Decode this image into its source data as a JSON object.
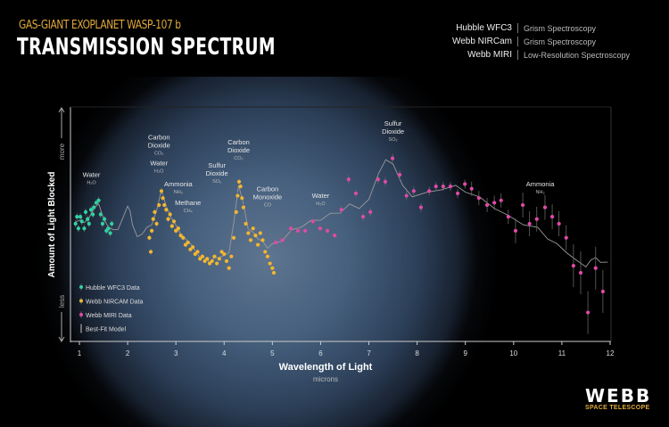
{
  "header": {
    "subtitle": "GAS-GIANT EXOPLANET WASP-107 b",
    "title": "TRANSMISSION SPECTRUM",
    "instruments": [
      {
        "name": "Hubble WFC3",
        "mode": "Grism Spectroscopy"
      },
      {
        "name": "Webb NIRCam",
        "mode": "Grism Spectroscopy"
      },
      {
        "name": "Webb MIRI",
        "mode": "Low-Resolution Spectroscopy"
      }
    ]
  },
  "logo": {
    "word": "WEBB",
    "sub": "SPACE TELESCOPE"
  },
  "chart_data": {
    "type": "scatter",
    "xlabel": "Wavelength of Light",
    "xunit": "microns",
    "ylabel": "Amount of Light Blocked",
    "y_more": "more",
    "y_less": "less",
    "xlim": [
      0.8,
      12
    ],
    "xticks": [
      1,
      2,
      3,
      4,
      5,
      6,
      7,
      8,
      9,
      10,
      11,
      12
    ],
    "ylim": [
      0,
      100
    ],
    "grid": false,
    "legend_position": "bottom-left",
    "colors": {
      "hubble": "#2ed3a0",
      "nircam": "#f2b630",
      "miri": "#e04aa8",
      "model": "#9a9a9a"
    },
    "legend": [
      "Hubble WFC3 Data",
      "Webb NIRCAM Data",
      "Webb MIRI Data",
      "Best-Fit Model"
    ],
    "series": [
      {
        "name": "Hubble WFC3 Data",
        "key": "hubble",
        "points": [
          [
            0.92,
            50
          ],
          [
            0.95,
            53
          ],
          [
            0.98,
            48
          ],
          [
            1.02,
            53
          ],
          [
            1.05,
            51
          ],
          [
            1.1,
            48
          ],
          [
            1.13,
            55
          ],
          [
            1.17,
            52
          ],
          [
            1.2,
            50
          ],
          [
            1.24,
            56
          ],
          [
            1.28,
            54
          ],
          [
            1.3,
            57
          ],
          [
            1.35,
            59
          ],
          [
            1.4,
            60
          ],
          [
            1.44,
            54
          ],
          [
            1.48,
            50
          ],
          [
            1.52,
            52
          ],
          [
            1.56,
            47
          ],
          [
            1.6,
            48
          ],
          [
            1.64,
            46
          ],
          [
            1.67,
            50
          ]
        ]
      },
      {
        "name": "Webb NIRCAM Data",
        "key": "nircam",
        "points": [
          [
            2.45,
            44
          ],
          [
            2.48,
            38
          ],
          [
            2.5,
            47
          ],
          [
            2.53,
            52
          ],
          [
            2.56,
            55
          ],
          [
            2.6,
            50
          ],
          [
            2.65,
            58
          ],
          [
            2.7,
            64
          ],
          [
            2.73,
            61
          ],
          [
            2.76,
            58
          ],
          [
            2.8,
            56
          ],
          [
            2.84,
            52
          ],
          [
            2.88,
            54
          ],
          [
            2.92,
            49
          ],
          [
            2.96,
            51
          ],
          [
            3.0,
            47
          ],
          [
            3.05,
            48
          ],
          [
            3.1,
            45
          ],
          [
            3.15,
            44
          ],
          [
            3.2,
            41
          ],
          [
            3.25,
            42
          ],
          [
            3.3,
            39
          ],
          [
            3.35,
            40
          ],
          [
            3.4,
            37
          ],
          [
            3.45,
            38
          ],
          [
            3.5,
            35
          ],
          [
            3.55,
            36
          ],
          [
            3.6,
            34
          ],
          [
            3.65,
            35
          ],
          [
            3.7,
            33
          ],
          [
            3.75,
            34
          ],
          [
            3.8,
            36
          ],
          [
            3.85,
            33
          ],
          [
            3.9,
            35
          ],
          [
            3.95,
            38
          ],
          [
            4.0,
            37
          ],
          [
            4.05,
            34
          ],
          [
            4.1,
            31
          ],
          [
            4.15,
            36
          ],
          [
            4.2,
            44
          ],
          [
            4.25,
            55
          ],
          [
            4.28,
            62
          ],
          [
            4.31,
            68
          ],
          [
            4.34,
            66
          ],
          [
            4.37,
            61
          ],
          [
            4.4,
            57
          ],
          [
            4.45,
            50
          ],
          [
            4.5,
            46
          ],
          [
            4.55,
            43
          ],
          [
            4.6,
            48
          ],
          [
            4.65,
            45
          ],
          [
            4.7,
            41
          ],
          [
            4.75,
            46
          ],
          [
            4.8,
            43
          ],
          [
            4.85,
            38
          ],
          [
            4.9,
            36
          ],
          [
            4.95,
            33
          ],
          [
            5.0,
            31
          ],
          [
            5.03,
            29
          ]
        ]
      },
      {
        "name": "Webb MIRI Data",
        "key": "miri",
        "points": [
          [
            5.07,
            42
          ],
          [
            5.21,
            43
          ],
          [
            5.38,
            48
          ],
          [
            5.53,
            47
          ],
          [
            5.68,
            47
          ],
          [
            5.84,
            51
          ],
          [
            5.99,
            48
          ],
          [
            6.14,
            47
          ],
          [
            6.29,
            45
          ],
          [
            6.43,
            56
          ],
          [
            6.58,
            69
          ],
          [
            6.73,
            63
          ],
          [
            6.88,
            53
          ],
          [
            7.03,
            55
          ],
          [
            7.19,
            69
          ],
          [
            7.34,
            68
          ],
          [
            7.49,
            78
          ],
          [
            7.64,
            71
          ],
          [
            7.78,
            62
          ],
          [
            7.93,
            64
          ],
          [
            8.08,
            57
          ],
          [
            8.25,
            64
          ],
          [
            8.39,
            66
          ],
          [
            8.54,
            66
          ],
          [
            8.69,
            66
          ],
          [
            8.84,
            63
          ],
          [
            8.99,
            67
          ],
          [
            9.13,
            65
          ],
          [
            9.28,
            61
          ],
          [
            9.45,
            58
          ],
          [
            9.6,
            59
          ],
          [
            9.74,
            60
          ],
          [
            9.89,
            53
          ],
          [
            10.04,
            47
          ],
          [
            10.19,
            58
          ],
          [
            10.33,
            50
          ],
          [
            10.48,
            52
          ],
          [
            10.65,
            57
          ],
          [
            10.8,
            53
          ],
          [
            10.94,
            50
          ],
          [
            11.09,
            44
          ],
          [
            11.24,
            32
          ],
          [
            11.39,
            29
          ],
          [
            11.54,
            12
          ],
          [
            11.7,
            31
          ],
          [
            11.85,
            21
          ]
        ]
      },
      {
        "name": "Best-Fit Model",
        "key": "model",
        "points": [
          [
            0.9,
            50
          ],
          [
            1.0,
            52
          ],
          [
            1.1,
            50
          ],
          [
            1.2,
            53
          ],
          [
            1.3,
            56
          ],
          [
            1.4,
            59
          ],
          [
            1.5,
            52
          ],
          [
            1.6,
            49
          ],
          [
            1.7,
            47
          ],
          [
            1.8,
            48
          ],
          [
            1.9,
            52
          ],
          [
            2.0,
            58
          ],
          [
            2.05,
            55
          ],
          [
            2.1,
            50
          ],
          [
            2.2,
            44
          ],
          [
            2.3,
            46
          ],
          [
            2.4,
            48
          ],
          [
            2.5,
            50
          ],
          [
            2.6,
            55
          ],
          [
            2.7,
            65
          ],
          [
            2.8,
            57
          ],
          [
            2.9,
            53
          ],
          [
            3.0,
            49
          ],
          [
            3.1,
            46
          ],
          [
            3.2,
            43
          ],
          [
            3.3,
            42
          ],
          [
            3.4,
            38
          ],
          [
            3.5,
            36
          ],
          [
            3.6,
            35
          ],
          [
            3.7,
            34
          ],
          [
            3.8,
            35
          ],
          [
            3.9,
            36
          ],
          [
            4.0,
            36
          ],
          [
            4.1,
            38
          ],
          [
            4.2,
            50
          ],
          [
            4.3,
            67
          ],
          [
            4.4,
            58
          ],
          [
            4.5,
            48
          ],
          [
            4.6,
            46
          ],
          [
            4.7,
            44
          ],
          [
            4.8,
            42
          ],
          [
            4.9,
            40
          ],
          [
            5.0,
            41
          ],
          [
            5.2,
            43
          ],
          [
            5.4,
            47
          ],
          [
            5.6,
            49
          ],
          [
            5.8,
            51
          ],
          [
            6.0,
            52
          ],
          [
            6.2,
            54
          ],
          [
            6.4,
            55
          ],
          [
            6.6,
            58
          ],
          [
            6.8,
            57
          ],
          [
            7.0,
            60
          ],
          [
            7.2,
            72
          ],
          [
            7.35,
            77
          ],
          [
            7.5,
            76
          ],
          [
            7.7,
            66
          ],
          [
            7.9,
            62
          ],
          [
            8.2,
            63
          ],
          [
            8.5,
            65
          ],
          [
            8.8,
            66
          ],
          [
            9.0,
            64
          ],
          [
            9.3,
            61
          ],
          [
            9.6,
            57
          ],
          [
            9.9,
            53
          ],
          [
            10.2,
            50
          ],
          [
            10.5,
            48
          ],
          [
            10.7,
            44
          ],
          [
            10.9,
            41
          ],
          [
            11.1,
            38
          ],
          [
            11.3,
            34
          ],
          [
            11.5,
            32
          ],
          [
            11.6,
            34
          ],
          [
            11.7,
            36
          ],
          [
            11.8,
            33
          ],
          [
            11.95,
            34
          ]
        ]
      }
    ],
    "annotations": [
      {
        "label": [
          "Water"
        ],
        "formula": "H₂O"
      },
      {
        "label": [
          "Carbon",
          "Dioxide"
        ],
        "formula": "CO₂"
      },
      {
        "label": [
          "Water"
        ],
        "formula": "H₂O"
      },
      {
        "label": [
          "Ammonia"
        ],
        "formula": "NH₃"
      },
      {
        "label": [
          "Methane"
        ],
        "formula": "CH₄"
      },
      {
        "label": [
          "Sulfur",
          "Dioxide"
        ],
        "formula": "SO₂"
      },
      {
        "label": [
          "Carbon",
          "Dioxide"
        ],
        "formula": "CO₂"
      },
      {
        "label": [
          "Carbon",
          "Monoxide"
        ],
        "formula": "CO"
      },
      {
        "label": [
          "Water"
        ],
        "formula": "H₂O"
      },
      {
        "label": [
          "Sulfur",
          "Dioxide"
        ],
        "formula": "SO₂"
      },
      {
        "label": [
          "Ammonia"
        ],
        "formula": "NH₃"
      }
    ]
  }
}
